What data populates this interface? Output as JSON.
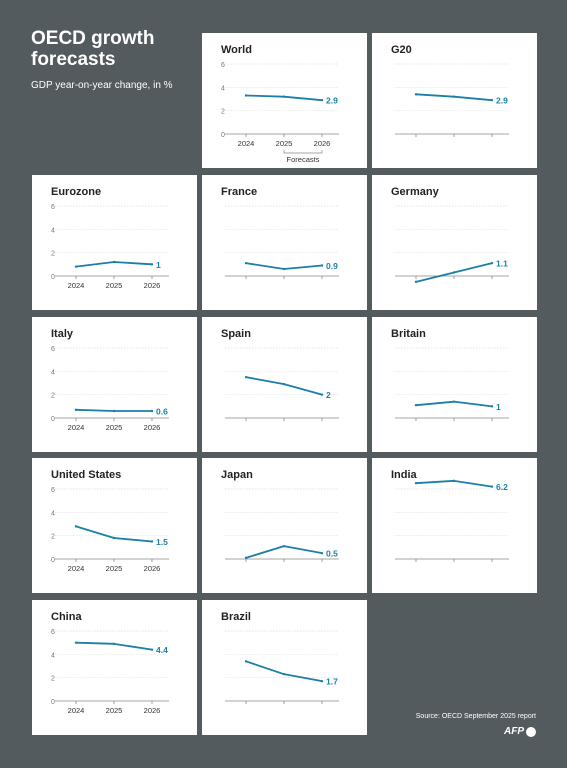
{
  "header": {
    "title": "OECD growth forecasts",
    "subtitle": "GDP year-on-year change, in %"
  },
  "footer": {
    "source": "Source: OECD September 2025 report",
    "logo": "AFP"
  },
  "colors": {
    "background": "#545b5e",
    "line": "#1b7fa8",
    "grid": "#dddddd",
    "axis": "#888888"
  },
  "chart_data": [
    {
      "type": "line",
      "title": "World",
      "categories": [
        "2024",
        "2025",
        "2026"
      ],
      "values": [
        3.3,
        3.2,
        2.9
      ],
      "ylim": [
        0,
        6
      ],
      "yticks": [
        "0",
        "2",
        "4",
        "6"
      ],
      "show_year_labels": true,
      "show_y_labels": true,
      "end_label": "2.9",
      "annotation": "Forecasts"
    },
    {
      "type": "line",
      "title": "G20",
      "categories": [
        "2024",
        "2025",
        "2026"
      ],
      "values": [
        3.4,
        3.2,
        2.9
      ],
      "ylim": [
        0,
        6
      ],
      "yticks": [
        "0",
        "2",
        "4",
        "6"
      ],
      "show_year_labels": false,
      "show_y_labels": false,
      "end_label": "2.9"
    },
    {
      "type": "line",
      "title": "Eurozone",
      "categories": [
        "2024",
        "2025",
        "2026"
      ],
      "values": [
        0.8,
        1.2,
        1.0
      ],
      "ylim": [
        0,
        6
      ],
      "yticks": [
        "0",
        "2",
        "4",
        "6"
      ],
      "show_year_labels": true,
      "show_y_labels": true,
      "end_label": "1"
    },
    {
      "type": "line",
      "title": "France",
      "categories": [
        "2024",
        "2025",
        "2026"
      ],
      "values": [
        1.1,
        0.6,
        0.9
      ],
      "ylim": [
        0,
        6
      ],
      "yticks": [
        "0",
        "2",
        "4",
        "6"
      ],
      "show_year_labels": false,
      "show_y_labels": false,
      "end_label": "0.9"
    },
    {
      "type": "line",
      "title": "Germany",
      "categories": [
        "2024",
        "2025",
        "2026"
      ],
      "values": [
        -0.5,
        0.3,
        1.1
      ],
      "ylim": [
        0,
        6
      ],
      "yticks": [
        "0",
        "2",
        "4",
        "6"
      ],
      "show_year_labels": false,
      "show_y_labels": false,
      "end_label": "1.1"
    },
    {
      "type": "line",
      "title": "Italy",
      "categories": [
        "2024",
        "2025",
        "2026"
      ],
      "values": [
        0.7,
        0.6,
        0.6
      ],
      "ylim": [
        0,
        6
      ],
      "yticks": [
        "0",
        "2",
        "4",
        "6"
      ],
      "show_year_labels": true,
      "show_y_labels": true,
      "end_label": "0.6"
    },
    {
      "type": "line",
      "title": "Spain",
      "categories": [
        "2024",
        "2025",
        "2026"
      ],
      "values": [
        3.5,
        2.9,
        2.0
      ],
      "ylim": [
        0,
        6
      ],
      "yticks": [
        "0",
        "2",
        "4",
        "6"
      ],
      "show_year_labels": false,
      "show_y_labels": false,
      "end_label": "2"
    },
    {
      "type": "line",
      "title": "Britain",
      "categories": [
        "2024",
        "2025",
        "2026"
      ],
      "values": [
        1.1,
        1.4,
        1.0
      ],
      "ylim": [
        0,
        6
      ],
      "yticks": [
        "0",
        "2",
        "4",
        "6"
      ],
      "show_year_labels": false,
      "show_y_labels": false,
      "end_label": "1"
    },
    {
      "type": "line",
      "title": "United States",
      "categories": [
        "2024",
        "2025",
        "2026"
      ],
      "values": [
        2.8,
        1.8,
        1.5
      ],
      "ylim": [
        0,
        6
      ],
      "yticks": [
        "0",
        "2",
        "4",
        "6"
      ],
      "show_year_labels": true,
      "show_y_labels": true,
      "end_label": "1.5"
    },
    {
      "type": "line",
      "title": "Japan",
      "categories": [
        "2024",
        "2025",
        "2026"
      ],
      "values": [
        0.1,
        1.1,
        0.5
      ],
      "ylim": [
        0,
        6
      ],
      "yticks": [
        "0",
        "2",
        "4",
        "6"
      ],
      "show_year_labels": false,
      "show_y_labels": false,
      "end_label": "0.5"
    },
    {
      "type": "line",
      "title": "India",
      "categories": [
        "2024",
        "2025",
        "2026"
      ],
      "values": [
        6.5,
        6.7,
        6.2
      ],
      "ylim": [
        0,
        6
      ],
      "yticks": [
        "0",
        "2",
        "4",
        "6"
      ],
      "show_year_labels": false,
      "show_y_labels": false,
      "end_label": "6.2"
    },
    {
      "type": "line",
      "title": "China",
      "categories": [
        "2024",
        "2025",
        "2026"
      ],
      "values": [
        5.0,
        4.9,
        4.4
      ],
      "ylim": [
        0,
        6
      ],
      "yticks": [
        "0",
        "2",
        "4",
        "6"
      ],
      "show_year_labels": true,
      "show_y_labels": true,
      "end_label": "4.4"
    },
    {
      "type": "line",
      "title": "Brazil",
      "categories": [
        "2024",
        "2025",
        "2026"
      ],
      "values": [
        3.4,
        2.3,
        1.7
      ],
      "ylim": [
        0,
        6
      ],
      "yticks": [
        "0",
        "2",
        "4",
        "6"
      ],
      "show_year_labels": false,
      "show_y_labels": false,
      "end_label": "1.7"
    }
  ]
}
